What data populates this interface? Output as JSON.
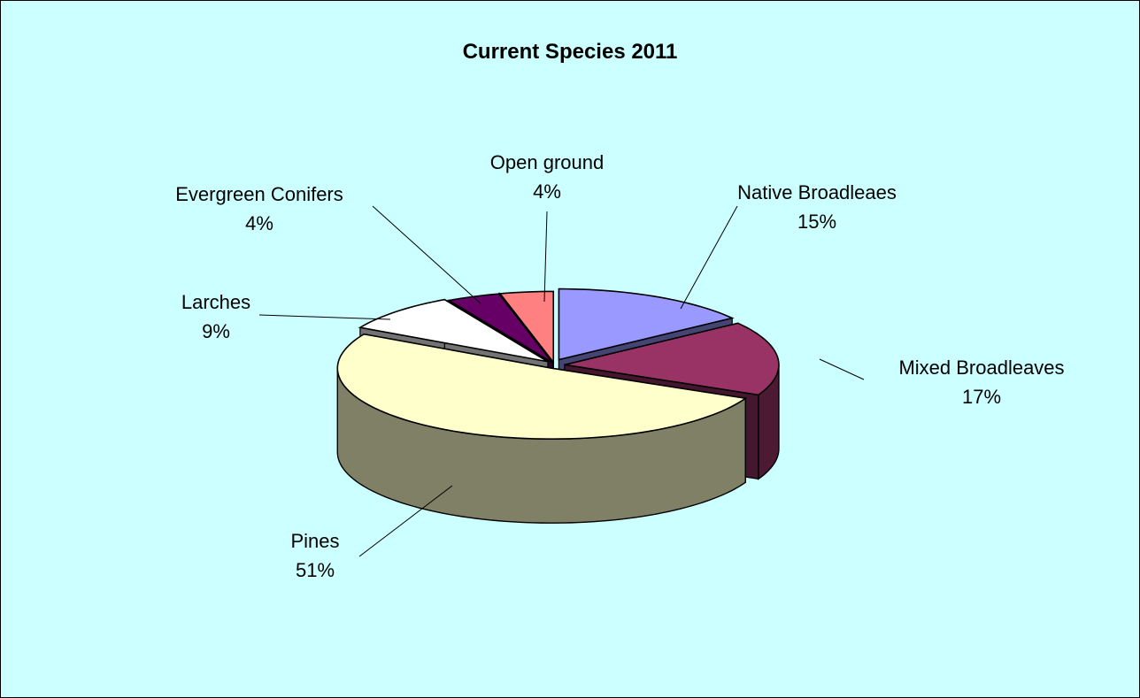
{
  "chart_data": {
    "type": "pie",
    "title": "Current Species 2011",
    "three_d": true,
    "exploded": true,
    "legend": "none",
    "slices": [
      {
        "name": "Native Broadleaes",
        "value": 15,
        "label": "15%",
        "color": "#9999ff"
      },
      {
        "name": "Mixed Broadleaves",
        "value": 17,
        "label": "17%",
        "color": "#993366"
      },
      {
        "name": "Pines",
        "value": 51,
        "label": "51%",
        "color": "#ffffcc"
      },
      {
        "name": "Larches",
        "value": 9,
        "label": "9%",
        "color": "#ffffff"
      },
      {
        "name": "Evergreen Conifers",
        "value": 4,
        "label": "4%",
        "color": "#660066"
      },
      {
        "name": "Open ground",
        "value": 4,
        "label": "4%",
        "color": "#ff8080"
      }
    ]
  },
  "colors": {
    "background": "#ccffff",
    "border": "#000000"
  }
}
